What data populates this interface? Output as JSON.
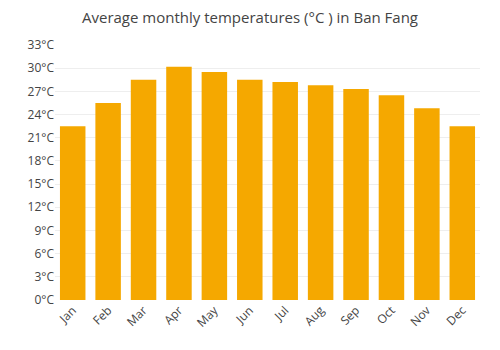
{
  "chart_data": {
    "type": "bar",
    "title": "Average monthly temperatures (°C ) in Ban Fang",
    "categories": [
      "Jan",
      "Feb",
      "Mar",
      "Apr",
      "May",
      "Jun",
      "Jul",
      "Aug",
      "Sep",
      "Oct",
      "Nov",
      "Dec"
    ],
    "values": [
      22.5,
      25.5,
      28.5,
      30.2,
      29.5,
      28.5,
      28.2,
      27.8,
      27.3,
      26.5,
      24.8,
      22.5
    ],
    "color": "#F5A800",
    "ylim": [
      0,
      33
    ],
    "yticks": [
      {
        "value": 0,
        "label": "0°C"
      },
      {
        "value": 3,
        "label": "3°C"
      },
      {
        "value": 6,
        "label": "6°C"
      },
      {
        "value": 9,
        "label": "9°C"
      },
      {
        "value": 12,
        "label": "12°C"
      },
      {
        "value": 15,
        "label": "15°C"
      },
      {
        "value": 18,
        "label": "18°C"
      },
      {
        "value": 21,
        "label": "21°C"
      },
      {
        "value": 24,
        "label": "24°C"
      },
      {
        "value": 27,
        "label": "27°C"
      },
      {
        "value": 30,
        "label": "30°C"
      },
      {
        "value": 33,
        "label": "33°C"
      }
    ],
    "grid": true
  }
}
